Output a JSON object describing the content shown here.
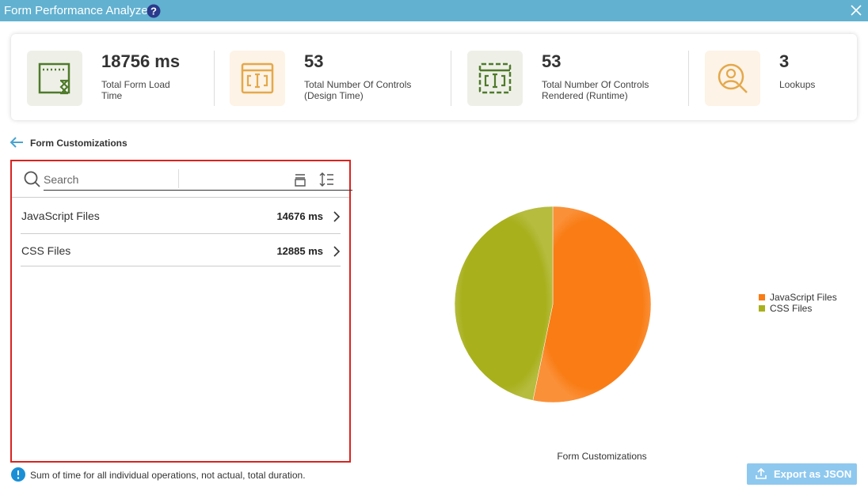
{
  "header": {
    "title": "Form Performance Analyzer"
  },
  "stats": [
    {
      "value": "18756 ms",
      "label": "Total Form Load Time"
    },
    {
      "value": "53",
      "label": "Total Number Of Controls (Design Time)"
    },
    {
      "value": "53",
      "label": "Total Number Of Controls Rendered (Runtime)"
    },
    {
      "value": "3",
      "label": "Lookups"
    }
  ],
  "section": {
    "title": "Form Customizations"
  },
  "search": {
    "placeholder": "Search"
  },
  "list": [
    {
      "name": "JavaScript Files",
      "time": "14676 ms"
    },
    {
      "name": "CSS Files",
      "time": "12885 ms"
    }
  ],
  "chart_data": {
    "type": "pie",
    "title": "Form Customizations",
    "categories": [
      "JavaScript Files",
      "CSS Files"
    ],
    "values": [
      14676,
      12885
    ],
    "colors": [
      "#f97c14",
      "#a8b01c"
    ],
    "legend": "right"
  },
  "note": "Sum of time for all individual operations, not actual, total duration.",
  "button": "Export as JSON"
}
